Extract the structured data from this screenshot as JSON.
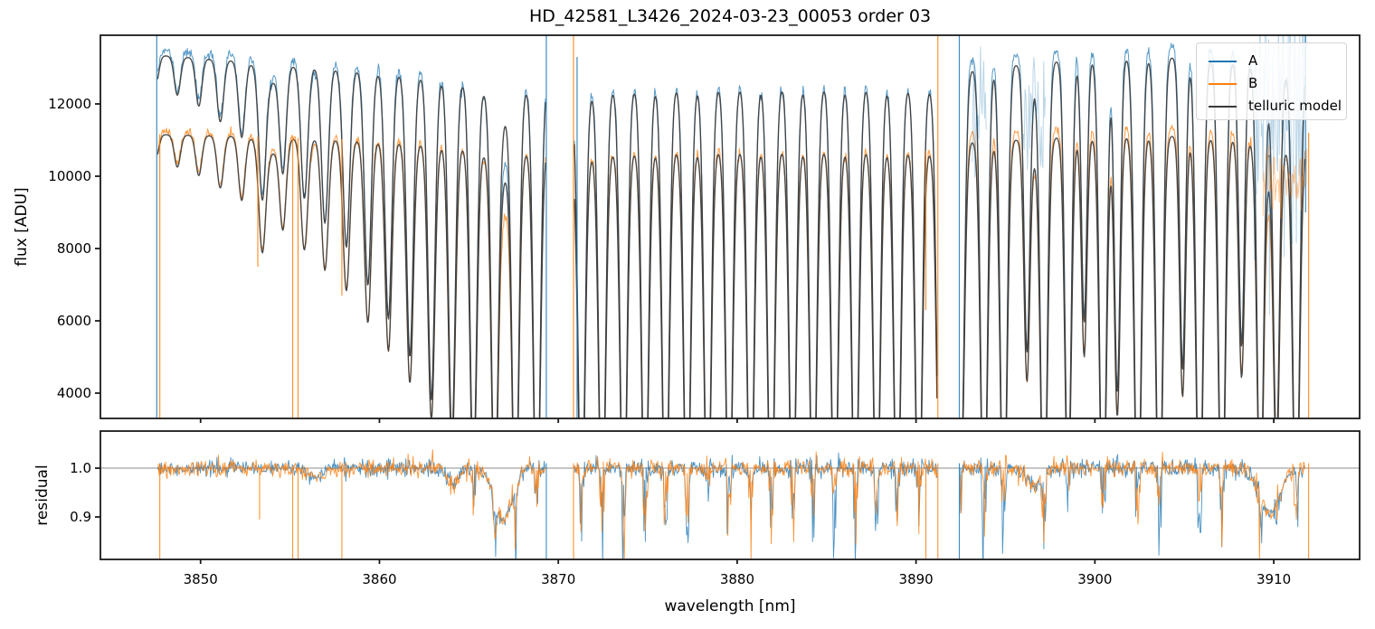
{
  "title": "HD_42581_L3426_2024-03-23_00053  order 03",
  "colors": {
    "A": "#1f77b4",
    "B": "#ff7f0e",
    "model": "#3a3a3a",
    "spine": "#1a1a1a",
    "unity_line": "#8c8c8c"
  },
  "legend": {
    "items": [
      {
        "label": "A",
        "color": "#1f77b4"
      },
      {
        "label": "B",
        "color": "#ff7f0e"
      },
      {
        "label": "telluric model",
        "color": "#3a3a3a"
      }
    ]
  },
  "chart_data": [
    {
      "type": "line",
      "panel": "flux",
      "title": "HD_42581_L3426_2024-03-23_00053  order 03",
      "ylabel": "flux [ADU]",
      "xlim": [
        3844.4,
        3914.8
      ],
      "ylim": [
        3300,
        13900
      ],
      "yticks": [
        4000,
        6000,
        8000,
        10000,
        12000
      ],
      "ytick_labels": [
        "4000",
        "6000",
        "8000",
        "10000",
        "12000"
      ],
      "grid": false,
      "legend_position": "upper right",
      "series_names": [
        "A",
        "B",
        "telluric model"
      ],
      "segments_nm": [
        [
          3847.6,
          3869.3
        ],
        [
          3870.9,
          3891.2
        ],
        [
          3892.45,
          3911.78
        ]
      ],
      "continuum_A": [
        [
          3846,
          13400
        ],
        [
          3848,
          13330
        ],
        [
          3850,
          13260
        ],
        [
          3852,
          13190
        ],
        [
          3854,
          13120
        ],
        [
          3856,
          13030
        ],
        [
          3858,
          12960
        ],
        [
          3860,
          12890
        ],
        [
          3862,
          12790
        ],
        [
          3864,
          12650
        ],
        [
          3865.5,
          12520
        ],
        [
          3866.9,
          12380
        ],
        [
          3868,
          12440
        ],
        [
          3869.3,
          12520
        ],
        [
          3870.9,
          12200
        ],
        [
          3871.5,
          12280
        ],
        [
          3872.5,
          12390
        ],
        [
          3874,
          12440
        ],
        [
          3876,
          12470
        ],
        [
          3878,
          12480
        ],
        [
          3880,
          12500
        ],
        [
          3882,
          12500
        ],
        [
          3884,
          12510
        ],
        [
          3886,
          12500
        ],
        [
          3888,
          12480
        ],
        [
          3890,
          12460
        ],
        [
          3891.3,
          12420
        ],
        [
          3892.5,
          12900
        ],
        [
          3893.5,
          13000
        ],
        [
          3895,
          13100
        ],
        [
          3897,
          13180
        ],
        [
          3899,
          13230
        ],
        [
          3901,
          13280
        ],
        [
          3903,
          13300
        ],
        [
          3905,
          13280
        ],
        [
          3907,
          13250
        ],
        [
          3909,
          13200
        ],
        [
          3910.5,
          13100
        ],
        [
          3912,
          12900
        ],
        [
          3913.5,
          12800
        ]
      ],
      "continuum_B": [
        [
          3846,
          11170
        ],
        [
          3848,
          11150
        ],
        [
          3850,
          11130
        ],
        [
          3852,
          11110
        ],
        [
          3854,
          11080
        ],
        [
          3856,
          11050
        ],
        [
          3858,
          11020
        ],
        [
          3860,
          10990
        ],
        [
          3862,
          10940
        ],
        [
          3864,
          10850
        ],
        [
          3865.5,
          10770
        ],
        [
          3866.9,
          10680
        ],
        [
          3868,
          10730
        ],
        [
          3869.3,
          10780
        ],
        [
          3870.9,
          10500
        ],
        [
          3871.5,
          10570
        ],
        [
          3872.5,
          10660
        ],
        [
          3874,
          10700
        ],
        [
          3876,
          10730
        ],
        [
          3878,
          10740
        ],
        [
          3880,
          10750
        ],
        [
          3882,
          10750
        ],
        [
          3884,
          10760
        ],
        [
          3886,
          10750
        ],
        [
          3888,
          10740
        ],
        [
          3890,
          10720
        ],
        [
          3891.3,
          10690
        ],
        [
          3892.5,
          10950
        ],
        [
          3893.5,
          11000
        ],
        [
          3895,
          11040
        ],
        [
          3897,
          11080
        ],
        [
          3899,
          11100
        ],
        [
          3901,
          11120
        ],
        [
          3903,
          11130
        ],
        [
          3905,
          11110
        ],
        [
          3907,
          11080
        ],
        [
          3909,
          11030
        ],
        [
          3910.5,
          10950
        ],
        [
          3912,
          10800
        ],
        [
          3913.5,
          10750
        ]
      ],
      "telluric_lines": [
        [
          3846.3,
          0.05,
          0.16
        ],
        [
          3847.5,
          0.06,
          0.16
        ],
        [
          3848.7,
          0.08,
          0.17
        ],
        [
          3849.9,
          0.1,
          0.17
        ],
        [
          3851.1,
          0.13,
          0.18
        ],
        [
          3852.3,
          0.16,
          0.18
        ],
        [
          3853.45,
          0.27,
          0.19
        ],
        [
          3854.6,
          0.22,
          0.18
        ],
        [
          3855.8,
          0.28,
          0.19
        ],
        [
          3856.95,
          0.33,
          0.19
        ],
        [
          3858.15,
          0.38,
          0.19
        ],
        [
          3859.35,
          0.46,
          0.19
        ],
        [
          3860.5,
          0.53,
          0.19
        ],
        [
          3861.7,
          0.61,
          0.19
        ],
        [
          3862.9,
          0.7,
          0.19
        ],
        [
          3864.05,
          0.78,
          0.19
        ],
        [
          3865.25,
          0.86,
          0.19
        ],
        [
          3866.45,
          0.92,
          0.19
        ],
        [
          3867.6,
          0.97,
          0.19
        ],
        [
          3868.8,
          0.995,
          0.19
        ],
        [
          3870.05,
          0.99,
          0.19
        ],
        [
          3871.3,
          0.985,
          0.19
        ],
        [
          3872.45,
          1.0,
          0.19
        ],
        [
          3873.65,
          1.0,
          0.19
        ],
        [
          3874.85,
          1.0,
          0.19
        ],
        [
          3876.0,
          1.0,
          0.19
        ],
        [
          3877.2,
          1.0,
          0.19
        ],
        [
          3878.35,
          1.0,
          0.19
        ],
        [
          3879.55,
          1.0,
          0.19
        ],
        [
          3880.75,
          1.0,
          0.19
        ],
        [
          3881.9,
          1.0,
          0.19
        ],
        [
          3883.1,
          1.0,
          0.19
        ],
        [
          3884.25,
          1.0,
          0.19
        ],
        [
          3885.45,
          1.0,
          0.19
        ],
        [
          3886.6,
          1.0,
          0.19
        ],
        [
          3887.8,
          1.0,
          0.19
        ],
        [
          3888.95,
          1.0,
          0.19
        ],
        [
          3890.15,
          1.0,
          0.19
        ],
        [
          3891.35,
          1.0,
          0.19
        ],
        [
          3892.5,
          0.9,
          0.19
        ],
        [
          3893.8,
          1.0,
          0.19
        ],
        [
          3894.9,
          1.0,
          0.19
        ],
        [
          3896.2,
          0.6,
          0.16
        ],
        [
          3897.15,
          1.0,
          0.19
        ],
        [
          3898.5,
          0.9,
          0.18
        ],
        [
          3899.4,
          0.55,
          0.15
        ],
        [
          3900.45,
          1.0,
          0.19
        ],
        [
          3901.25,
          0.7,
          0.16
        ],
        [
          3902.4,
          1.0,
          0.19
        ],
        [
          3903.6,
          1.0,
          0.19
        ],
        [
          3904.9,
          0.65,
          0.16
        ],
        [
          3905.85,
          1.0,
          0.19
        ],
        [
          3907.1,
          1.0,
          0.19
        ],
        [
          3908.2,
          0.6,
          0.16
        ],
        [
          3909.25,
          0.95,
          0.18
        ],
        [
          3910.15,
          0.8,
          0.17
        ],
        [
          3911.25,
          1.0,
          0.19
        ],
        [
          3912.45,
          1.0,
          0.19
        ],
        [
          3913.4,
          0.85,
          0.18
        ]
      ],
      "model_broad_dips": [
        [
          3853.9,
          0.04,
          0.5
        ],
        [
          3866.9,
          0.065,
          0.55
        ],
        [
          3896.6,
          0.04,
          0.45
        ],
        [
          3909.8,
          0.07,
          0.5
        ]
      ],
      "data_over_model_A": [
        1.012,
        1.006,
        1.028
      ],
      "data_over_model_B": [
        1.008,
        1.005,
        1.022
      ],
      "noise_A": 85,
      "noise_B": 68,
      "edge_spikes": [
        {
          "x": 3847.55,
          "series": "A",
          "y0": "top",
          "y1": "bot"
        },
        {
          "x": 3847.72,
          "series": "B",
          "y0": 11160,
          "y1": "bot"
        },
        {
          "x": 3869.33,
          "series": "A",
          "y0": "top",
          "y1": "bot"
        },
        {
          "x": 3870.85,
          "series": "B",
          "y0": "top",
          "y1": "bot"
        },
        {
          "x": 3871.05,
          "series": "A",
          "y0": 13300,
          "y1": "bot"
        },
        {
          "x": 3891.22,
          "series": "B",
          "y0": "top",
          "y1": "bot"
        },
        {
          "x": 3892.42,
          "series": "A",
          "y0": "top",
          "y1": "bot"
        },
        {
          "x": 3911.78,
          "series": "A",
          "y0": "top",
          "y1": 9000
        },
        {
          "x": 3911.95,
          "series": "B",
          "y0": 11200,
          "y1": "bot"
        }
      ],
      "bad_pixel_spikes": [
        {
          "x": 3853.2,
          "series": "B",
          "to": 7500
        },
        {
          "x": 3855.15,
          "series": "B",
          "to": "bot"
        },
        {
          "x": 3855.45,
          "series": "B",
          "to": "bot"
        },
        {
          "x": 3857.9,
          "series": "B",
          "to": 6700
        },
        {
          "x": 3890.55,
          "series": "B",
          "to": 6300
        }
      ],
      "noisy_saturated_zones_A": [
        [
          3893.15,
          3893.95,
          800
        ],
        [
          3896.0,
          3897.25,
          900
        ],
        [
          3908.9,
          3911.78,
          2300
        ]
      ],
      "noisy_saturated_zones_B": [
        [
          3909.4,
          3911.9,
          550
        ]
      ]
    },
    {
      "type": "line",
      "panel": "residual",
      "ylabel": "residual",
      "xlabel": "wavelength [nm]",
      "xlim": [
        3844.4,
        3914.8
      ],
      "ylim": [
        0.813,
        1.076
      ],
      "yticks": [
        0.9,
        1.0
      ],
      "ytick_labels": [
        "0.9",
        "1.0"
      ],
      "xticks": [
        3850,
        3860,
        3870,
        3880,
        3890,
        3900,
        3910
      ],
      "xtick_labels": [
        "3850",
        "3860",
        "3870",
        "3880",
        "3890",
        "3900",
        "3910"
      ],
      "hline": 1.0,
      "noise_base": 0.011,
      "unmodeled_dips": [
        [
          3856.3,
          0.02,
          0.4
        ],
        [
          3864.1,
          0.035,
          0.3
        ],
        [
          3866.9,
          0.105,
          0.5
        ],
        [
          3896.6,
          0.035,
          0.4
        ],
        [
          3909.8,
          0.095,
          0.55
        ]
      ],
      "bad_pixel_spikes": [
        {
          "x": 3853.3,
          "series": "B",
          "to": 0.895
        },
        {
          "x": 3855.15,
          "series": "B",
          "to": "bot"
        },
        {
          "x": 3855.45,
          "series": "B",
          "to": "bot"
        },
        {
          "x": 3857.9,
          "series": "B",
          "to": "bot"
        },
        {
          "x": 3890.55,
          "series": "B",
          "to": "bot"
        }
      ],
      "edge_spikes": [
        {
          "x": 3847.72,
          "series": "B"
        },
        {
          "x": 3869.33,
          "series": "A"
        },
        {
          "x": 3870.85,
          "series": "B"
        },
        {
          "x": 3891.22,
          "series": "B"
        },
        {
          "x": 3892.42,
          "series": "A"
        },
        {
          "x": 3911.95,
          "series": "B"
        }
      ]
    }
  ]
}
